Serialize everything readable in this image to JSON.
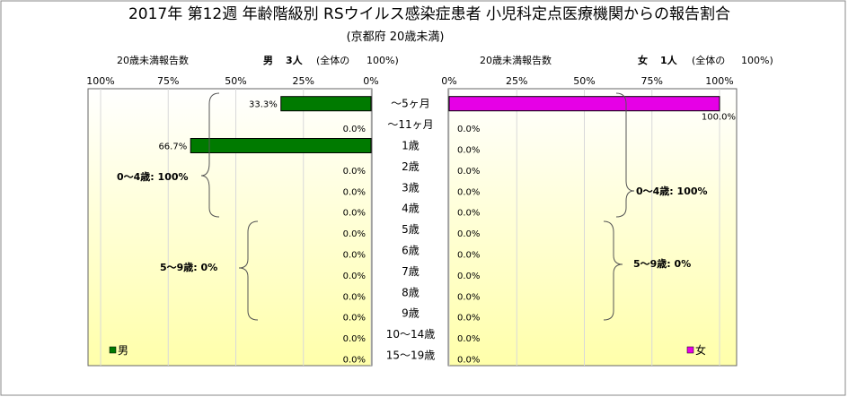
{
  "title": "2017年 第12週 年齢階級別 RSウイルス感染症患者 小児科定点医療機関からの報告割合",
  "subtitle": "(京都府 20歳未満)",
  "left_panel": {
    "count_label": "20歳未満報告数",
    "sex_label": "男",
    "people": "3人",
    "total_note": "(全体の",
    "total_pct": "100%)",
    "legend": "男",
    "brace_labels": [
      "0～4歳: 100%",
      "5～9歳: 0%"
    ]
  },
  "right_panel": {
    "count_label": "20歳未満報告数",
    "sex_label": "女",
    "people": "1人",
    "total_note": "(全体の",
    "total_pct": "100%)",
    "legend": "女",
    "brace_labels": [
      "0～4歳: 100%",
      "5～9歳: 0%"
    ]
  },
  "colors": {
    "male": "#007a00",
    "female": "#e600e6",
    "bg_top": "#ffffff",
    "bg_bottom": "#ffffaa"
  },
  "chart_data": {
    "type": "bar",
    "orientation": "horizontal-pyramid",
    "categories": [
      "～5ヶ月",
      "～11ヶ月",
      "1歳",
      "2歳",
      "3歳",
      "4歳",
      "5歳",
      "6歳",
      "7歳",
      "8歳",
      "9歳",
      "10～14歳",
      "15～19歳"
    ],
    "series": [
      {
        "name": "男",
        "values": [
          33.3,
          0.0,
          66.7,
          0.0,
          0.0,
          0.0,
          0.0,
          0.0,
          0.0,
          0.0,
          0.0,
          0.0,
          0.0
        ],
        "labels": [
          "33.3%",
          "0.0%",
          "66.7%",
          "0.0%",
          "0.0%",
          "0.0%",
          "0.0%",
          "0.0%",
          "0.0%",
          "0.0%",
          "0.0%",
          "0.0%",
          "0.0%"
        ]
      },
      {
        "name": "女",
        "values": [
          100.0,
          0.0,
          0.0,
          0.0,
          0.0,
          0.0,
          0.0,
          0.0,
          0.0,
          0.0,
          0.0,
          0.0,
          0.0
        ],
        "labels": [
          "100.0%",
          "0.0%",
          "0.0%",
          "0.0%",
          "0.0%",
          "0.0%",
          "0.0%",
          "0.0%",
          "0.0%",
          "0.0%",
          "0.0%",
          "0.0%",
          "0.0%"
        ]
      }
    ],
    "xlim": [
      0,
      100
    ],
    "x_ticks": [
      "100%",
      "75%",
      "50%",
      "25%",
      "0%"
    ],
    "x_ticks_right": [
      "0%",
      "25%",
      "50%",
      "75%",
      "100%"
    ],
    "grid": true,
    "legend_position": "bottom"
  }
}
